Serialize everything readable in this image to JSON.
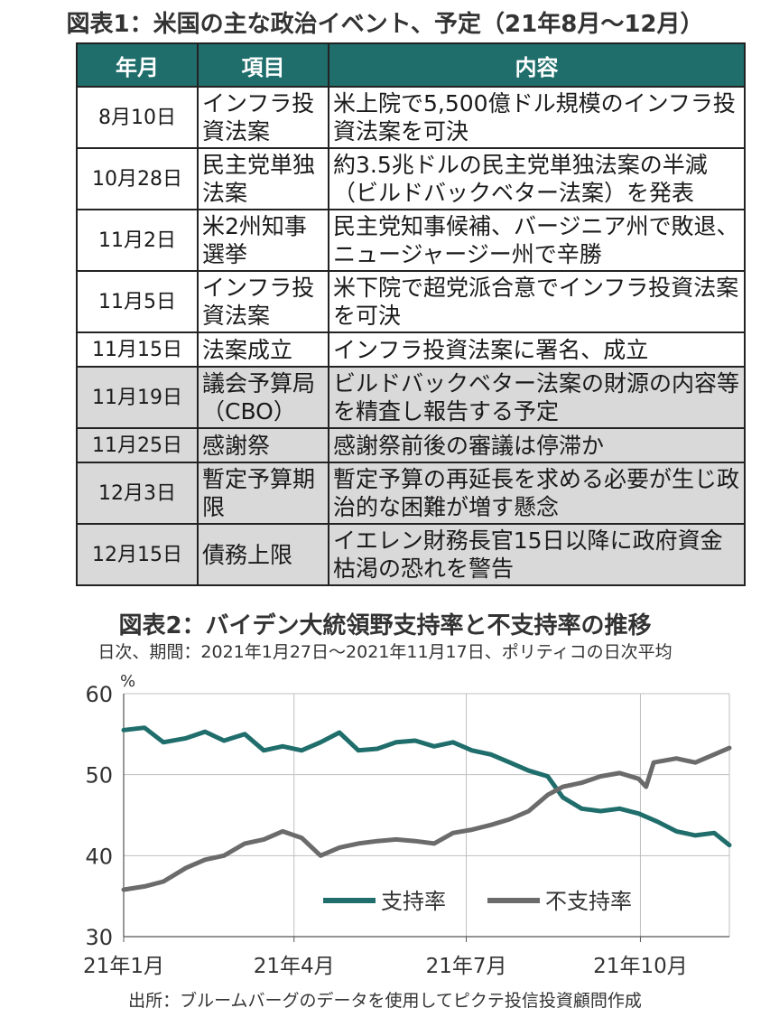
{
  "table": {
    "title": "図表1：米国の主な政治イベント、予定（21年8月～12月）",
    "headers": [
      "年月",
      "項目",
      "内容"
    ],
    "rows": [
      {
        "date": "8月10日",
        "item": "インフラ投資法案",
        "content": "米上院で5,500億ドル規模のインフラ投資法案を可決",
        "shaded": false
      },
      {
        "date": "10月28日",
        "item": "民主党単独法案",
        "content": "約3.5兆ドルの民主党単独法案の半減（ビルドバックベター法案）を発表",
        "shaded": false
      },
      {
        "date": "11月2日",
        "item": "米2州知事選挙",
        "content": "民主党知事候補、バージニア州で敗退、ニュージャージー州で辛勝",
        "shaded": false
      },
      {
        "date": "11月5日",
        "item": "インフラ投資法案",
        "content": "米下院で超党派合意でインフラ投資法案を可決",
        "shaded": false
      },
      {
        "date": "11月15日",
        "item": "法案成立",
        "content": "インフラ投資法案に署名、成立",
        "shaded": false
      },
      {
        "date": "11月19日",
        "item": "議会予算局（CBO）",
        "content": "ビルドバックベター法案の財源の内容等を精査し報告する予定",
        "shaded": true
      },
      {
        "date": "11月25日",
        "item": "感謝祭",
        "content": "感謝祭前後の審議は停滞か",
        "shaded": true
      },
      {
        "date": "12月3日",
        "item": "暫定予算期限",
        "content": "暫定予算の再延長を求める必要が生じ政治的な困難が増す懸念",
        "shaded": true
      },
      {
        "date": "12月15日",
        "item": "債務上限",
        "content": "イエレン財務長官15日以降に政府資金枯渇の恐れを警告",
        "shaded": true
      }
    ]
  },
  "chart_title": "図表2：バイデン大統領野支持率と不支持率の推移",
  "chart_subtitle": "日次、期間：2021年1月27日～2021年11月17日、ポリティコの日次平均",
  "source": "出所：ブルームバーグのデータを使用してピクテ投信投資顧問作成",
  "colors": {
    "approve": "#1f6e6c",
    "disapprove": "#6b6b6b",
    "header_bg": "#1f6e6c",
    "shade": "#d9d9d9"
  },
  "chart_data": {
    "type": "line",
    "ylabel": "%",
    "ylim": [
      30,
      60
    ],
    "yticks": [
      30,
      40,
      50,
      60
    ],
    "xtick_labels": [
      {
        "date": "2021-01-01",
        "label": "21年1月"
      },
      {
        "date": "2021-04-01",
        "label": "21年4月"
      },
      {
        "date": "2021-07-01",
        "label": "21年7月"
      },
      {
        "date": "2021-10-01",
        "label": "21年10月"
      }
    ],
    "xlim": [
      "2021-01-01",
      "2021-11-17"
    ],
    "grid": true,
    "legend_position": "bottom-right",
    "series": [
      {
        "name": "支持率",
        "color": "#1f6e6c",
        "points": [
          [
            "2021-01-01",
            55.5
          ],
          [
            "2021-01-12",
            55.8
          ],
          [
            "2021-01-22",
            54.0
          ],
          [
            "2021-02-03",
            54.5
          ],
          [
            "2021-02-13",
            55.3
          ],
          [
            "2021-02-23",
            54.2
          ],
          [
            "2021-03-06",
            55.0
          ],
          [
            "2021-03-16",
            53.0
          ],
          [
            "2021-03-26",
            53.5
          ],
          [
            "2021-04-05",
            53.0
          ],
          [
            "2021-04-15",
            54.0
          ],
          [
            "2021-04-25",
            55.2
          ],
          [
            "2021-05-05",
            53.0
          ],
          [
            "2021-05-15",
            53.2
          ],
          [
            "2021-05-25",
            54.0
          ],
          [
            "2021-06-04",
            54.2
          ],
          [
            "2021-06-14",
            53.5
          ],
          [
            "2021-06-24",
            54.0
          ],
          [
            "2021-07-04",
            53.0
          ],
          [
            "2021-07-14",
            52.5
          ],
          [
            "2021-07-24",
            51.5
          ],
          [
            "2021-08-03",
            50.5
          ],
          [
            "2021-08-13",
            49.8
          ],
          [
            "2021-08-21",
            47.2
          ],
          [
            "2021-08-31",
            45.8
          ],
          [
            "2021-09-10",
            45.5
          ],
          [
            "2021-09-20",
            45.8
          ],
          [
            "2021-09-30",
            45.2
          ],
          [
            "2021-10-10",
            44.2
          ],
          [
            "2021-10-20",
            43.0
          ],
          [
            "2021-10-30",
            42.5
          ],
          [
            "2021-11-09",
            42.8
          ],
          [
            "2021-11-17",
            41.3
          ]
        ]
      },
      {
        "name": "不支持率",
        "color": "#6b6b6b",
        "points": [
          [
            "2021-01-01",
            35.8
          ],
          [
            "2021-01-12",
            36.2
          ],
          [
            "2021-01-22",
            36.8
          ],
          [
            "2021-02-03",
            38.5
          ],
          [
            "2021-02-13",
            39.5
          ],
          [
            "2021-02-23",
            40.0
          ],
          [
            "2021-03-06",
            41.5
          ],
          [
            "2021-03-16",
            42.0
          ],
          [
            "2021-03-26",
            43.0
          ],
          [
            "2021-04-05",
            42.2
          ],
          [
            "2021-04-15",
            40.0
          ],
          [
            "2021-04-25",
            41.0
          ],
          [
            "2021-05-05",
            41.5
          ],
          [
            "2021-05-15",
            41.8
          ],
          [
            "2021-05-25",
            42.0
          ],
          [
            "2021-06-04",
            41.8
          ],
          [
            "2021-06-14",
            41.5
          ],
          [
            "2021-06-24",
            42.8
          ],
          [
            "2021-07-04",
            43.2
          ],
          [
            "2021-07-14",
            43.8
          ],
          [
            "2021-07-24",
            44.5
          ],
          [
            "2021-08-03",
            45.5
          ],
          [
            "2021-08-13",
            47.5
          ],
          [
            "2021-08-21",
            48.5
          ],
          [
            "2021-08-31",
            49.0
          ],
          [
            "2021-09-10",
            49.8
          ],
          [
            "2021-09-20",
            50.2
          ],
          [
            "2021-09-30",
            49.5
          ],
          [
            "2021-10-04",
            48.5
          ],
          [
            "2021-10-08",
            51.5
          ],
          [
            "2021-10-20",
            52.0
          ],
          [
            "2021-10-30",
            51.5
          ],
          [
            "2021-11-09",
            52.5
          ],
          [
            "2021-11-17",
            53.3
          ]
        ]
      }
    ]
  }
}
